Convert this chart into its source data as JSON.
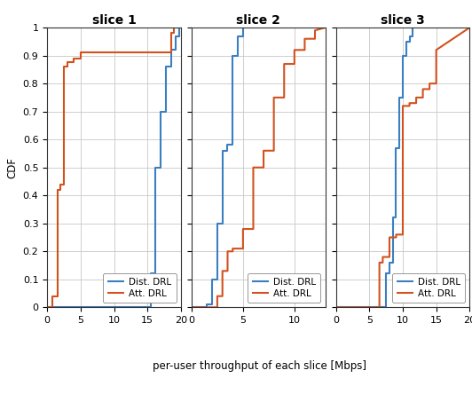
{
  "title_fontsize": 10,
  "axis_fontsize": 8.5,
  "tick_fontsize": 8,
  "legend_fontsize": 7.5,
  "blue_color": "#3A7FC1",
  "orange_color": "#D2521E",
  "line_width": 1.5,
  "ylabel": "CDF",
  "xlabel": "per-user throughput of each slice [Mbps]",
  "slices": [
    "slice 1",
    "slice 2",
    "slice 3"
  ],
  "slice1": {
    "xlim": [
      0,
      20
    ],
    "xticks": [
      0,
      5,
      10,
      15,
      20
    ],
    "dist_x": [
      0,
      15.5,
      15.5,
      16.2,
      16.2,
      17.0,
      17.0,
      17.8,
      17.8,
      18.5,
      18.5,
      19.2,
      19.2,
      19.8,
      19.8,
      20
    ],
    "dist_y": [
      0,
      0,
      0.12,
      0.12,
      0.5,
      0.5,
      0.7,
      0.7,
      0.86,
      0.86,
      0.92,
      0.92,
      0.97,
      0.97,
      1.0,
      1.0
    ],
    "att_x": [
      0,
      0.8,
      0.8,
      1.5,
      1.5,
      2.0,
      2.0,
      2.5,
      2.5,
      3.0,
      3.0,
      4.0,
      4.0,
      5.0,
      5.0,
      18.5,
      18.5,
      19.0,
      19.0,
      20
    ],
    "att_y": [
      0,
      0,
      0.04,
      0.04,
      0.42,
      0.42,
      0.44,
      0.44,
      0.86,
      0.86,
      0.875,
      0.875,
      0.89,
      0.89,
      0.91,
      0.91,
      0.98,
      0.98,
      1.0,
      1.0
    ]
  },
  "slice2": {
    "xlim": [
      0,
      13
    ],
    "xticks": [
      0,
      5,
      10
    ],
    "dist_x": [
      0,
      1.5,
      1.5,
      2.0,
      2.0,
      2.5,
      2.5,
      3.0,
      3.0,
      3.5,
      3.5,
      4.0,
      4.0,
      4.5,
      4.5,
      5.0,
      5.0,
      13
    ],
    "dist_y": [
      0,
      0,
      0.01,
      0.01,
      0.1,
      0.1,
      0.3,
      0.3,
      0.56,
      0.56,
      0.58,
      0.58,
      0.9,
      0.9,
      0.97,
      0.97,
      1.0,
      1.0
    ],
    "att_x": [
      0,
      2.5,
      2.5,
      3.0,
      3.0,
      3.5,
      3.5,
      4.0,
      4.0,
      5.0,
      5.0,
      6.0,
      6.0,
      7.0,
      7.0,
      8.0,
      8.0,
      9.0,
      9.0,
      10.0,
      10.0,
      11.0,
      11.0,
      12.0,
      12.0,
      13.0
    ],
    "att_y": [
      0,
      0,
      0.04,
      0.04,
      0.13,
      0.13,
      0.2,
      0.2,
      0.21,
      0.21,
      0.28,
      0.28,
      0.5,
      0.5,
      0.56,
      0.56,
      0.75,
      0.75,
      0.87,
      0.87,
      0.92,
      0.92,
      0.96,
      0.96,
      0.99,
      1.0
    ]
  },
  "slice3": {
    "xlim": [
      0,
      20
    ],
    "xticks": [
      0,
      5,
      10,
      15,
      20
    ],
    "dist_x": [
      0,
      7.5,
      7.5,
      8.0,
      8.0,
      8.5,
      8.5,
      9.0,
      9.0,
      9.5,
      9.5,
      10.0,
      10.0,
      10.5,
      10.5,
      11.0,
      11.0,
      11.5,
      11.5,
      20
    ],
    "dist_y": [
      0,
      0,
      0.12,
      0.12,
      0.16,
      0.16,
      0.32,
      0.32,
      0.57,
      0.57,
      0.75,
      0.75,
      0.9,
      0.9,
      0.95,
      0.95,
      0.97,
      0.97,
      1.0,
      1.0
    ],
    "att_x": [
      0,
      6.5,
      6.5,
      7.0,
      7.0,
      8.0,
      8.0,
      9.0,
      9.0,
      10.0,
      10.0,
      11.0,
      11.0,
      12.0,
      12.0,
      13.0,
      13.0,
      14.0,
      14.0,
      15.0,
      15.0,
      20
    ],
    "att_y": [
      0,
      0,
      0.16,
      0.16,
      0.18,
      0.18,
      0.25,
      0.25,
      0.26,
      0.26,
      0.72,
      0.72,
      0.73,
      0.73,
      0.75,
      0.75,
      0.78,
      0.78,
      0.8,
      0.8,
      0.92,
      1.0
    ]
  }
}
